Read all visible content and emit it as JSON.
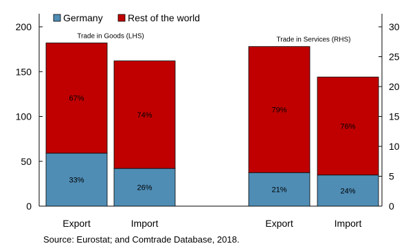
{
  "chart_data": {
    "type": "bar",
    "stacked": true,
    "axes": {
      "left": {
        "ticks": [
          "0",
          "50",
          "100",
          "150",
          "200"
        ],
        "ylim": [
          0,
          200
        ]
      },
      "right": {
        "ticks": [
          "0",
          "5",
          "10",
          "15",
          "20",
          "25",
          "30"
        ],
        "ylim": [
          0,
          30
        ]
      }
    },
    "legend": {
      "position": "top-left",
      "inside": true
    },
    "series": [
      {
        "name": "Germany",
        "color": "#4f8db5"
      },
      {
        "name": "Rest of the world",
        "color": "#c00000"
      }
    ],
    "groups": [
      {
        "label": "Trade in Goods (LHS)",
        "axis": "left",
        "bars": [
          {
            "category": "Export",
            "total": 182,
            "germany": 59,
            "germany_pct": "33%",
            "rest_pct": "67%"
          },
          {
            "category": "Import",
            "total": 162,
            "germany": 42,
            "germany_pct": "26%",
            "rest_pct": "74%"
          }
        ]
      },
      {
        "label": "Trade in Services (RHS)",
        "axis": "right",
        "bars": [
          {
            "category": "Export",
            "total": 26.7,
            "germany": 5.6,
            "germany_pct": "21%",
            "rest_pct": "79%"
          },
          {
            "category": "Import",
            "total": 21.6,
            "germany": 5.2,
            "germany_pct": "24%",
            "rest_pct": "76%"
          }
        ]
      }
    ]
  },
  "source": "Source: Eurostat; and Comtrade Database, 2018."
}
